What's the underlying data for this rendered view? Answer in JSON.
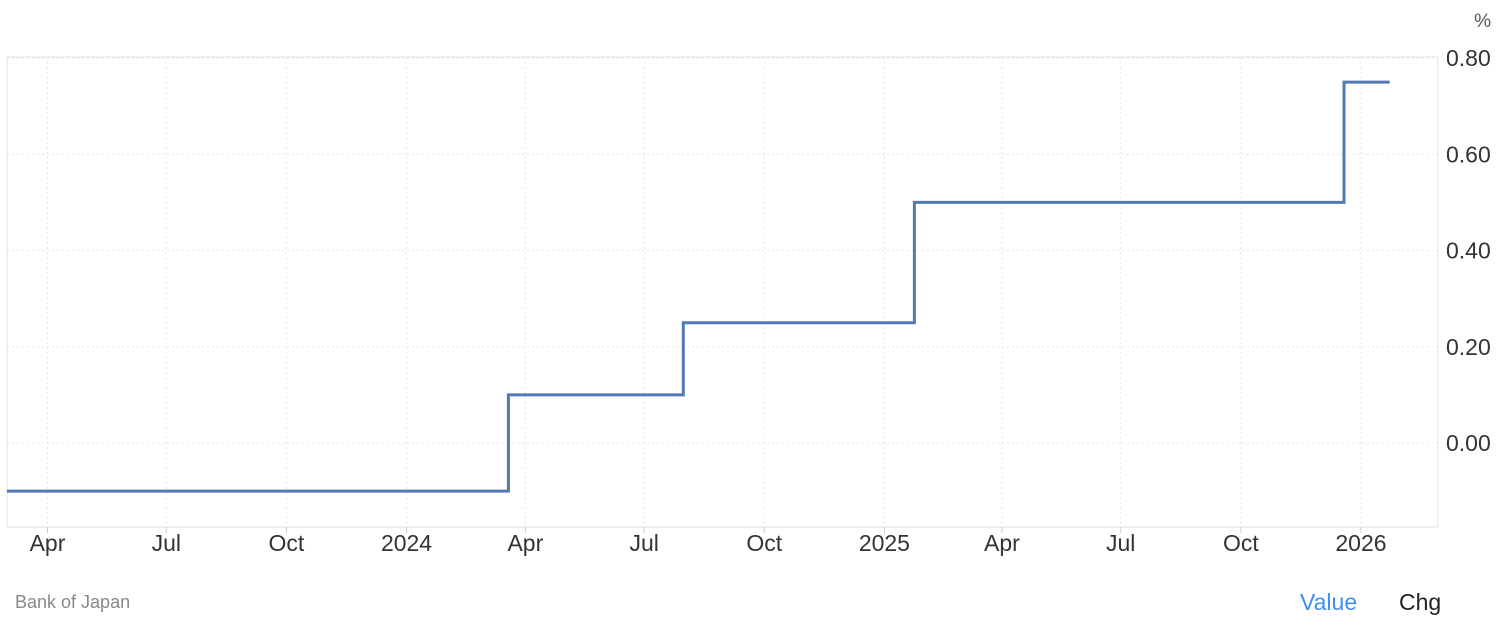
{
  "chart_data": {
    "type": "line",
    "step": true,
    "unit_label": "%",
    "grid": true,
    "x_range": [
      "2023-03-01",
      "2026-03-01"
    ],
    "y_range": [
      -0.17,
      0.8
    ],
    "y_ticks": [
      {
        "value": 0.8,
        "label": "0.80"
      },
      {
        "value": 0.6,
        "label": "0.60"
      },
      {
        "value": 0.4,
        "label": "0.40"
      },
      {
        "value": 0.2,
        "label": "0.20"
      },
      {
        "value": 0.0,
        "label": "0.00"
      }
    ],
    "x_ticks": [
      {
        "date": "2023-04-01",
        "label": "Apr"
      },
      {
        "date": "2023-07-01",
        "label": "Jul"
      },
      {
        "date": "2023-10-01",
        "label": "Oct"
      },
      {
        "date": "2024-01-01",
        "label": "2024"
      },
      {
        "date": "2024-04-01",
        "label": "Apr"
      },
      {
        "date": "2024-07-01",
        "label": "Jul"
      },
      {
        "date": "2024-10-01",
        "label": "Oct"
      },
      {
        "date": "2025-01-01",
        "label": "2025"
      },
      {
        "date": "2025-04-01",
        "label": "Apr"
      },
      {
        "date": "2025-07-01",
        "label": "Jul"
      },
      {
        "date": "2025-10-01",
        "label": "Oct"
      },
      {
        "date": "2026-01-01",
        "label": "2026"
      }
    ],
    "series": [
      {
        "color": "#5279b6",
        "points": [
          {
            "x": "2023-03-01",
            "y": -0.1
          },
          {
            "x": "2024-03-19",
            "y": 0.1
          },
          {
            "x": "2024-07-31",
            "y": 0.25
          },
          {
            "x": "2025-01-24",
            "y": 0.5
          },
          {
            "x": "2025-12-19",
            "y": 0.75
          },
          {
            "x": "2026-01-23",
            "y": 0.75
          }
        ]
      }
    ]
  },
  "footer": {
    "source": "Bank of Japan",
    "toggle_value": "Value",
    "toggle_chg": "Chg"
  },
  "colors": {
    "series": "#5279b6",
    "active_toggle": "#3d8ef0"
  }
}
